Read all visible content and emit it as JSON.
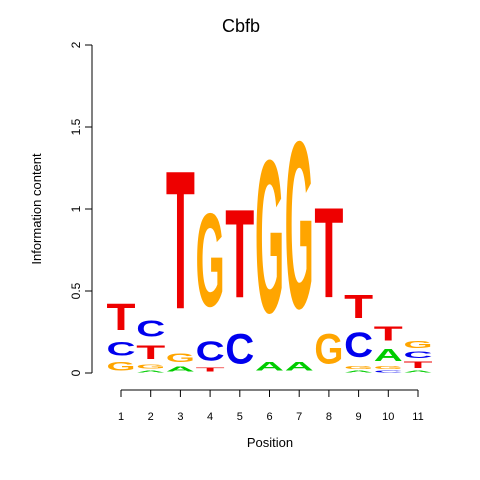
{
  "chart_data": {
    "type": "sequence-logo",
    "title": "Cbfb",
    "xlabel": "Position",
    "ylabel": "Information content",
    "ylim": [
      0,
      2
    ],
    "yticks": [
      "0",
      "0.5",
      "1",
      "1.5",
      "2"
    ],
    "positions": [
      "1",
      "2",
      "3",
      "4",
      "5",
      "6",
      "7",
      "8",
      "9",
      "10",
      "11"
    ],
    "colors": {
      "A": "#00cc00",
      "C": "#0000ee",
      "G": "#ffa500",
      "T": "#ee0000"
    },
    "columns": [
      {
        "position": "1",
        "letters": [
          {
            "base": "G",
            "height": 0.08
          },
          {
            "base": "C",
            "height": 0.13
          },
          {
            "base": "T",
            "height": 0.26
          }
        ]
      },
      {
        "position": "2",
        "letters": [
          {
            "base": "A",
            "height": 0.02
          },
          {
            "base": "G",
            "height": 0.04
          },
          {
            "base": "T",
            "height": 0.13
          },
          {
            "base": "C",
            "height": 0.16
          }
        ]
      },
      {
        "position": "3",
        "letters": [
          {
            "base": "A",
            "height": 0.05
          },
          {
            "base": "G",
            "height": 0.08
          },
          {
            "base": "T",
            "height": 1.35
          }
        ]
      },
      {
        "position": "4",
        "letters": [
          {
            "base": "T",
            "height": 0.04
          },
          {
            "base": "C",
            "height": 0.19
          },
          {
            "base": "G",
            "height": 0.91
          }
        ]
      },
      {
        "position": "5",
        "letters": [
          {
            "base": "C",
            "height": 0.29
          },
          {
            "base": "T",
            "height": 0.86
          }
        ]
      },
      {
        "position": "6",
        "letters": [
          {
            "base": "A",
            "height": 0.08
          },
          {
            "base": "G",
            "height": 1.49
          }
        ]
      },
      {
        "position": "7",
        "letters": [
          {
            "base": "A",
            "height": 0.08
          },
          {
            "base": "G",
            "height": 1.63
          }
        ]
      },
      {
        "position": "8",
        "letters": [
          {
            "base": "G",
            "height": 0.29
          },
          {
            "base": "T",
            "height": 0.88
          }
        ]
      },
      {
        "position": "9",
        "letters": [
          {
            "base": "A",
            "height": 0.02
          },
          {
            "base": "G",
            "height": 0.03
          },
          {
            "base": "C",
            "height": 0.24
          },
          {
            "base": "T",
            "height": 0.23
          }
        ]
      },
      {
        "position": "10",
        "letters": [
          {
            "base": "C",
            "height": 0.02
          },
          {
            "base": "G",
            "height": 0.03
          },
          {
            "base": "A",
            "height": 0.12
          },
          {
            "base": "T",
            "height": 0.14
          }
        ]
      },
      {
        "position": "11",
        "letters": [
          {
            "base": "A",
            "height": 0.02
          },
          {
            "base": "T",
            "height": 0.06
          },
          {
            "base": "C",
            "height": 0.06
          },
          {
            "base": "G",
            "height": 0.07
          }
        ]
      }
    ]
  }
}
